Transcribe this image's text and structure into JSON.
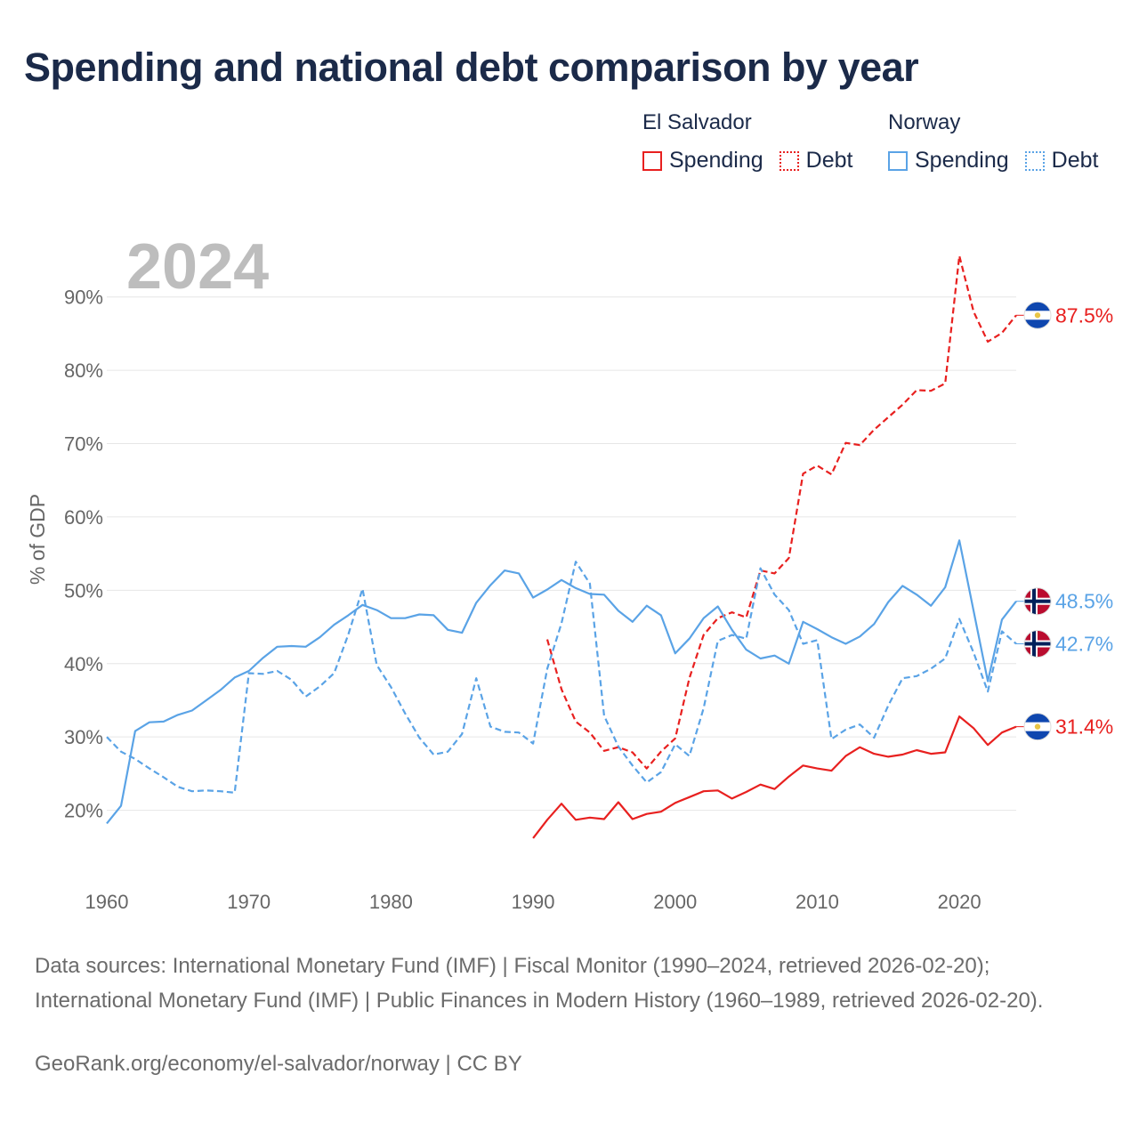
{
  "title": "Spending and national debt comparison by year",
  "year_label": "2024",
  "legend": {
    "groups": [
      {
        "name": "El Salvador",
        "items": [
          {
            "label": "Spending",
            "color": "#e8201f",
            "style": "solid"
          },
          {
            "label": "Debt",
            "color": "#e8201f",
            "style": "dotted"
          }
        ]
      },
      {
        "name": "Norway",
        "items": [
          {
            "label": "Spending",
            "color": "#5aa3e6",
            "style": "solid"
          },
          {
            "label": "Debt",
            "color": "#5aa3e6",
            "style": "dotted"
          }
        ]
      }
    ]
  },
  "footer": {
    "sources": "Data sources: International Monetary Fund (IMF) | Fiscal Monitor (1990–2024, retrieved 2026-02-20); International Monetary Fund (IMF) | Public Finances in Modern History (1960–1989, retrieved 2026-02-20).",
    "credit": "GeoRank.org/economy/el-salvador/norway | CC BY"
  },
  "chart_data": {
    "type": "line",
    "title": "Spending and national debt comparison by year",
    "xlabel": "",
    "ylabel": "% of GDP",
    "xlim": [
      1960,
      2024
    ],
    "ylim": [
      10,
      97
    ],
    "x_ticks": [
      1960,
      1970,
      1980,
      1990,
      2000,
      2010,
      2020
    ],
    "y_ticks": [
      20,
      30,
      40,
      50,
      60,
      70,
      80,
      90
    ],
    "y_tick_labels": [
      "20%",
      "30%",
      "40%",
      "50%",
      "60%",
      "70%",
      "80%",
      "90%"
    ],
    "grid": "horizontal",
    "series": [
      {
        "name": "El Salvador Spending",
        "country": "El Salvador",
        "metric": "Spending",
        "color": "#e8201f",
        "dash": "solid",
        "end_label": "31.4%",
        "x": [
          1990,
          1991,
          1992,
          1993,
          1994,
          1995,
          1996,
          1997,
          1998,
          1999,
          2000,
          2001,
          2002,
          2003,
          2004,
          2005,
          2006,
          2007,
          2008,
          2009,
          2010,
          2011,
          2012,
          2013,
          2014,
          2015,
          2016,
          2017,
          2018,
          2019,
          2020,
          2021,
          2022,
          2023,
          2024
        ],
        "y": [
          16.2,
          18.7,
          20.9,
          18.7,
          19.0,
          18.8,
          21.1,
          18.8,
          19.5,
          19.8,
          21.0,
          21.8,
          22.6,
          22.7,
          21.6,
          22.5,
          23.5,
          22.9,
          24.6,
          26.1,
          25.7,
          25.4,
          27.4,
          28.6,
          27.7,
          27.3,
          27.6,
          28.2,
          27.7,
          27.9,
          32.8,
          31.2,
          28.9,
          30.6,
          31.4
        ]
      },
      {
        "name": "El Salvador Debt",
        "country": "El Salvador",
        "metric": "Debt",
        "color": "#e8201f",
        "dash": "dashed",
        "end_label": "87.5%",
        "x": [
          1991,
          1992,
          1993,
          1994,
          1995,
          1996,
          1997,
          1998,
          1999,
          2000,
          2001,
          2002,
          2003,
          2004,
          2005,
          2006,
          2007,
          2008,
          2009,
          2010,
          2011,
          2012,
          2013,
          2014,
          2015,
          2016,
          2017,
          2018,
          2019,
          2020,
          2021,
          2022,
          2023,
          2024
        ],
        "y": [
          43.3,
          36.5,
          32.1,
          30.6,
          28.1,
          28.6,
          27.9,
          25.7,
          28.0,
          29.8,
          38.0,
          43.9,
          46.2,
          47.0,
          46.3,
          52.7,
          52.3,
          54.4,
          65.9,
          67.0,
          65.8,
          70.1,
          69.8,
          71.9,
          73.6,
          75.3,
          77.3,
          77.2,
          78.2,
          95.6,
          88.0,
          83.9,
          85.1,
          87.5
        ]
      },
      {
        "name": "Norway Spending",
        "country": "Norway",
        "metric": "Spending",
        "color": "#5aa3e6",
        "dash": "solid",
        "end_label": "48.5%",
        "x": [
          1960,
          1961,
          1962,
          1963,
          1964,
          1965,
          1966,
          1967,
          1968,
          1969,
          1970,
          1971,
          1972,
          1973,
          1974,
          1975,
          1976,
          1977,
          1978,
          1979,
          1980,
          1981,
          1982,
          1983,
          1984,
          1985,
          1986,
          1987,
          1988,
          1989,
          1990,
          1991,
          1992,
          1993,
          1994,
          1995,
          1996,
          1997,
          1998,
          1999,
          2000,
          2001,
          2002,
          2003,
          2004,
          2005,
          2006,
          2007,
          2008,
          2009,
          2010,
          2011,
          2012,
          2013,
          2014,
          2015,
          2016,
          2017,
          2018,
          2019,
          2020,
          2021,
          2022,
          2023,
          2024
        ],
        "y": [
          18.2,
          20.6,
          30.8,
          32.0,
          32.1,
          33.0,
          33.6,
          35.0,
          36.4,
          38.1,
          39.0,
          40.8,
          42.3,
          42.4,
          42.3,
          43.6,
          45.3,
          46.6,
          48.0,
          47.3,
          46.2,
          46.2,
          46.7,
          46.6,
          44.6,
          44.2,
          48.3,
          50.7,
          52.7,
          52.3,
          49.0,
          50.1,
          51.4,
          50.3,
          49.5,
          49.4,
          47.2,
          45.7,
          47.9,
          46.6,
          41.4,
          43.4,
          46.2,
          47.8,
          44.6,
          41.9,
          40.7,
          41.1,
          40.0,
          45.7,
          44.7,
          43.6,
          42.7,
          43.7,
          45.4,
          48.4,
          50.6,
          49.4,
          47.9,
          50.4,
          56.8,
          47.2,
          37.6,
          46.0,
          48.5
        ]
      },
      {
        "name": "Norway Debt",
        "country": "Norway",
        "metric": "Debt",
        "color": "#5aa3e6",
        "dash": "dashed",
        "end_label": "42.7%",
        "x": [
          1960,
          1961,
          1962,
          1963,
          1964,
          1965,
          1966,
          1967,
          1968,
          1969,
          1970,
          1971,
          1972,
          1973,
          1974,
          1975,
          1976,
          1977,
          1978,
          1979,
          1980,
          1981,
          1982,
          1983,
          1984,
          1985,
          1986,
          1987,
          1988,
          1989,
          1990,
          1991,
          1992,
          1993,
          1994,
          1995,
          1996,
          1997,
          1998,
          1999,
          2000,
          2001,
          2002,
          2003,
          2004,
          2005,
          2006,
          2007,
          2008,
          2009,
          2010,
          2011,
          2012,
          2013,
          2014,
          2015,
          2016,
          2017,
          2018,
          2019,
          2020,
          2021,
          2022,
          2023,
          2024
        ],
        "y": [
          30.0,
          28.0,
          27.0,
          25.7,
          24.5,
          23.2,
          22.6,
          22.7,
          22.6,
          22.4,
          38.7,
          38.6,
          39.0,
          37.8,
          35.5,
          36.9,
          38.7,
          44.0,
          50.2,
          39.8,
          36.8,
          33.2,
          29.9,
          27.6,
          28.0,
          30.4,
          38.0,
          31.4,
          30.7,
          30.6,
          29.1,
          39.3,
          45.5,
          53.9,
          50.9,
          32.9,
          28.7,
          26.1,
          23.8,
          25.2,
          29.0,
          27.4,
          33.9,
          43.1,
          43.9,
          43.4,
          53.0,
          49.4,
          47.3,
          42.7,
          43.2,
          29.7,
          31.0,
          31.7,
          29.9,
          34.3,
          38.0,
          38.3,
          39.3,
          40.7,
          46.1,
          41.5,
          36.2,
          44.4,
          42.7
        ]
      }
    ]
  }
}
